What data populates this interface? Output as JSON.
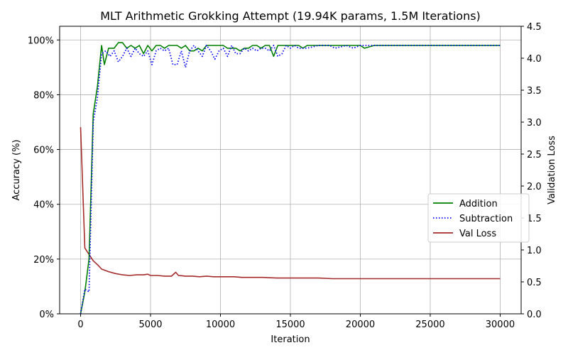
{
  "chart_data": {
    "type": "line",
    "title": "MLT Arithmetic Grokking Attempt (19.94K params, 1.5M Iterations)",
    "xlabel": "Iteration",
    "ylabel": "Accuracy (%)",
    "y2label": "Validation Loss",
    "xlim": [
      -1500,
      31500
    ],
    "ylim": [
      0,
      105
    ],
    "y2lim": [
      0,
      4.5
    ],
    "xticks": [
      0,
      5000,
      10000,
      15000,
      20000,
      25000,
      30000
    ],
    "yticks": [
      0,
      20,
      40,
      60,
      80,
      100
    ],
    "y2ticks": [
      0.0,
      0.5,
      1.0,
      1.5,
      2.0,
      2.5,
      3.0,
      3.5,
      4.0,
      4.5
    ],
    "grid": true,
    "legend_position": "center-right",
    "series": [
      {
        "name": "Addition",
        "axis": "left",
        "color": "#008000",
        "style": "solid",
        "x": [
          0,
          300,
          600,
          900,
          1200,
          1500,
          1700,
          2000,
          2400,
          2700,
          3000,
          3300,
          3600,
          3900,
          4200,
          4500,
          4800,
          5100,
          5400,
          5700,
          6000,
          6300,
          6600,
          6900,
          7200,
          7500,
          7800,
          8100,
          8400,
          8700,
          9000,
          9300,
          9600,
          9900,
          10200,
          10500,
          10800,
          11100,
          11400,
          11700,
          12000,
          12300,
          12600,
          12900,
          13200,
          13500,
          13800,
          14100,
          14400,
          14700,
          15000,
          15300,
          15600,
          15900,
          16200,
          17000,
          18000,
          19000,
          19500,
          20000,
          20300,
          21000,
          22000,
          23000,
          24000,
          25000,
          26000,
          27000,
          28000,
          29000,
          30000
        ],
        "y": [
          0,
          8,
          20,
          73,
          83,
          98,
          91,
          97,
          97,
          99,
          99,
          97,
          98,
          97,
          98,
          95,
          98,
          96,
          98,
          98,
          97,
          98,
          98,
          98,
          97,
          98,
          96,
          96,
          97,
          96,
          98,
          98,
          98,
          98,
          98,
          97,
          97,
          97,
          96,
          97,
          97,
          98,
          98,
          97,
          98,
          98,
          94,
          98,
          98,
          98,
          98,
          98,
          98,
          97,
          98,
          98,
          98,
          98,
          98,
          98,
          97,
          98,
          98,
          98,
          98,
          98,
          98,
          98,
          98,
          98,
          98
        ]
      },
      {
        "name": "Subtraction",
        "axis": "left",
        "color": "#0000ff",
        "style": "dotted",
        "x": [
          0,
          300,
          600,
          900,
          1200,
          1500,
          1800,
          2100,
          2400,
          2700,
          3000,
          3300,
          3600,
          3900,
          4200,
          4500,
          4800,
          5100,
          5400,
          5700,
          6000,
          6300,
          6600,
          6900,
          7200,
          7500,
          7800,
          8100,
          8400,
          8700,
          9000,
          9300,
          9600,
          9900,
          10200,
          10500,
          10800,
          11100,
          11400,
          11700,
          12000,
          12300,
          12600,
          12900,
          13200,
          13500,
          13800,
          14100,
          14400,
          14700,
          15000,
          15300,
          15600,
          15900,
          16200,
          17000,
          17800,
          18200,
          19000,
          19500,
          20000,
          21000,
          22000,
          23000,
          24000,
          25000,
          26000,
          27000,
          28000,
          29000,
          30000
        ],
        "y": [
          0,
          9,
          8,
          70,
          79,
          95,
          96,
          94,
          96,
          92,
          94,
          97,
          94,
          97,
          95,
          94,
          96,
          91,
          96,
          97,
          96,
          97,
          91,
          91,
          96,
          90,
          96,
          98,
          96,
          94,
          98,
          96,
          93,
          96,
          97,
          94,
          98,
          95,
          95,
          97,
          96,
          97,
          96,
          97,
          97,
          96,
          98,
          94,
          95,
          98,
          97,
          98,
          97,
          97,
          97,
          98,
          98,
          97,
          98,
          97,
          98,
          98,
          98,
          98,
          98,
          98,
          98,
          98,
          98,
          98,
          98
        ]
      },
      {
        "name": "Val Loss",
        "axis": "right",
        "color": "#a52a2a",
        "style": "solid",
        "x": [
          0,
          300,
          600,
          900,
          1200,
          1500,
          2000,
          2500,
          3000,
          3500,
          4000,
          4500,
          4800,
          5000,
          5500,
          6000,
          6500,
          6800,
          7000,
          7500,
          8000,
          8500,
          9000,
          9500,
          10000,
          10500,
          11000,
          11500,
          12000,
          13000,
          14000,
          15000,
          16000,
          17000,
          18000,
          20000,
          22000,
          24000,
          26000,
          28000,
          30000
        ],
        "y": [
          2.92,
          1.03,
          0.93,
          0.83,
          0.77,
          0.7,
          0.66,
          0.63,
          0.61,
          0.6,
          0.61,
          0.61,
          0.62,
          0.6,
          0.6,
          0.59,
          0.59,
          0.65,
          0.6,
          0.59,
          0.59,
          0.58,
          0.59,
          0.58,
          0.58,
          0.58,
          0.58,
          0.57,
          0.57,
          0.57,
          0.56,
          0.56,
          0.56,
          0.56,
          0.55,
          0.55,
          0.55,
          0.55,
          0.55,
          0.55,
          0.55
        ]
      }
    ]
  }
}
